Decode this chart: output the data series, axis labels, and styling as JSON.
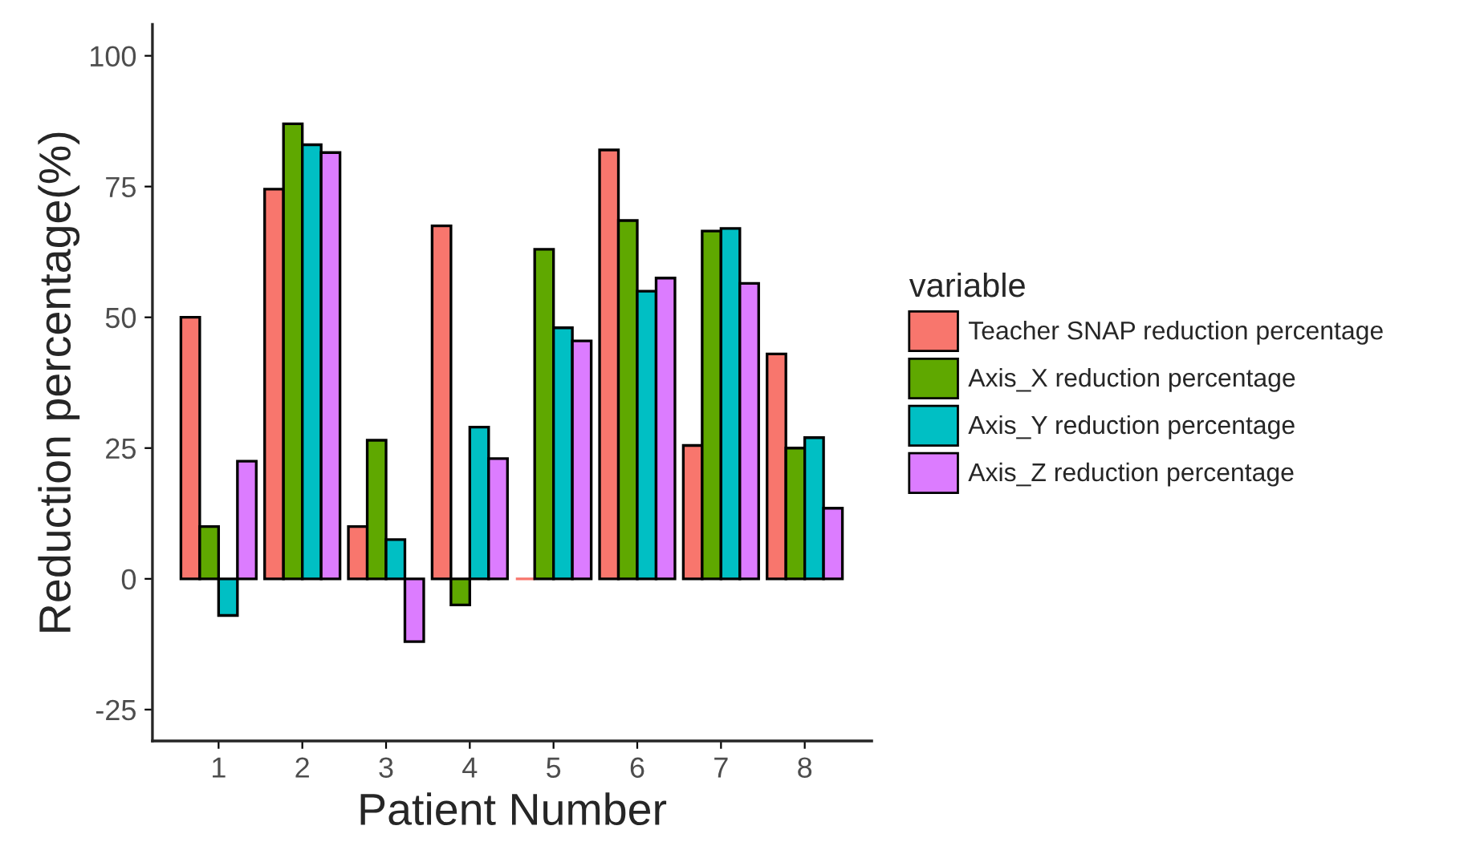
{
  "chart_data": {
    "type": "bar",
    "xlabel": "Patient Number",
    "ylabel": "Reduction percentage(%)",
    "legend_title": "variable",
    "categories": [
      "1",
      "2",
      "3",
      "4",
      "5",
      "6",
      "7",
      "8"
    ],
    "series": [
      {
        "name": "Teacher SNAP reduction percentage",
        "color": "#f8766d",
        "values": [
          50,
          74.5,
          10,
          67.5,
          0,
          82,
          25.5,
          43
        ]
      },
      {
        "name": "Axis_X reduction percentage",
        "color": "#5fa800",
        "values": [
          10,
          87,
          26.5,
          -5,
          63,
          68.5,
          66.5,
          25
        ]
      },
      {
        "name": "Axis_Y reduction percentage",
        "color": "#00bfc4",
        "values": [
          -7,
          83,
          7.5,
          29,
          48,
          55,
          67,
          27
        ]
      },
      {
        "name": "Axis_Z reduction percentage",
        "color": "#dc7cff",
        "values": [
          22.5,
          81.5,
          -12,
          23,
          45.5,
          57.5,
          56.5,
          13.5
        ]
      }
    ],
    "ylim": [
      -31,
      106
    ],
    "yticks": [
      -25,
      0,
      25,
      50,
      75,
      100
    ],
    "grid": false,
    "legend": "right"
  }
}
